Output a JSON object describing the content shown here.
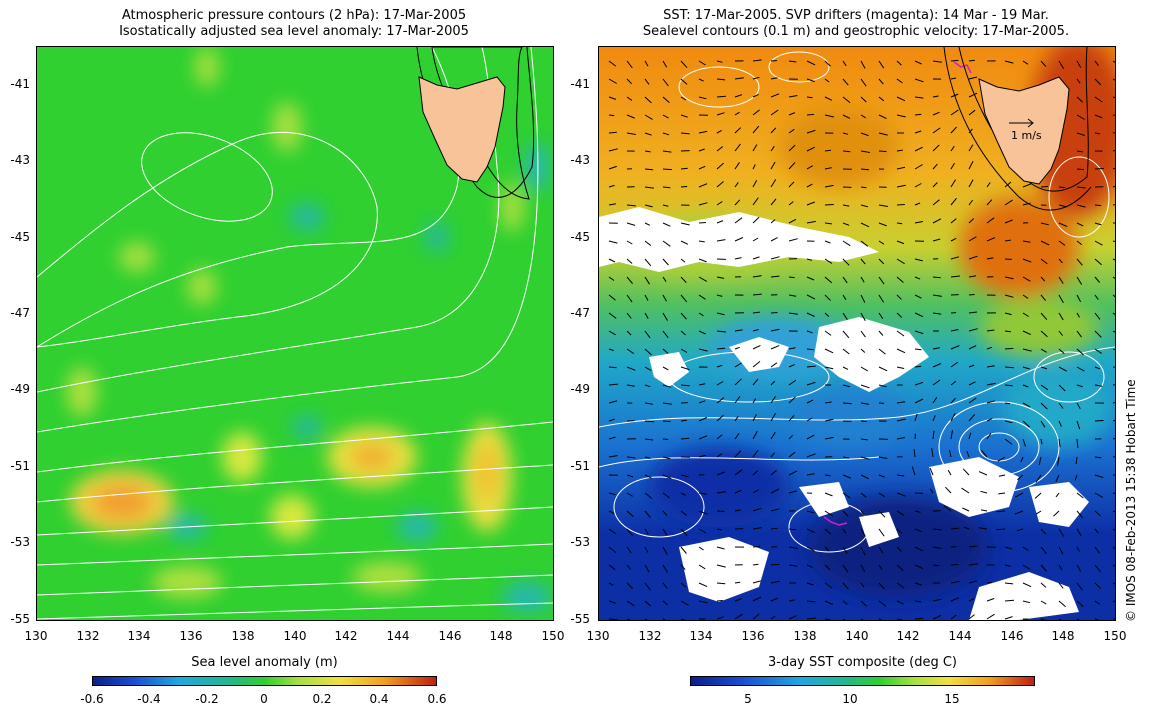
{
  "left_panel": {
    "title_line1": "Atmospheric pressure contours (2 hPa): 17-Mar-2005",
    "title_line2": "Isostatically adjusted sea level anomaly: 17-Mar-2005",
    "colorbar_label": "Sea level anomaly (m)",
    "colorbar_ticks": [
      "-0.6",
      "-0.4",
      "-0.2",
      "0",
      "0.2",
      "0.4",
      "0.6"
    ],
    "colorbar_range": [
      -0.6,
      0.6
    ]
  },
  "right_panel": {
    "title_line1": "SST: 17-Mar-2005. SVP drifters (magenta): 14 Mar - 19 Mar.",
    "title_line2": "Sealevel contours (0.1 m) and geostrophic velocity: 17-Mar-2005.",
    "colorbar_label": "3-day SST composite (deg C)",
    "colorbar_ticks": [
      "5",
      "10",
      "15"
    ],
    "velocity_scale_label": "1 m/s"
  },
  "axes": {
    "lon_ticks": [
      "130",
      "132",
      "134",
      "136",
      "138",
      "140",
      "142",
      "144",
      "146",
      "148",
      "150"
    ],
    "lat_ticks": [
      "-41",
      "-43",
      "-45",
      "-47",
      "-49",
      "-51",
      "-53",
      "-55"
    ],
    "lon_range": [
      130,
      150
    ],
    "lat_range": [
      -55,
      -40
    ]
  },
  "credit": "© IMOS 08-Feb-2013 15:38 Hobart Time",
  "colors": {
    "land": "#f9c39a",
    "sla_bg": "#2fd030",
    "sst_warm": "#f08a10",
    "sst_cold": "#0d2fa6"
  }
}
